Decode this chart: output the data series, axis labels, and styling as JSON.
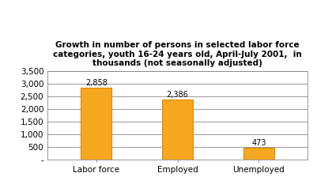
{
  "title": "Growth in number of persons in selected labor force\ncategories, youth 16-24 years old, April-July 2001,  in\nthousands (not seasonally adjusted)",
  "categories": [
    "Labor force",
    "Employed",
    "Unemployed"
  ],
  "values": [
    2858,
    2386,
    473
  ],
  "bar_color": "#F5A820",
  "bar_edge_color": "#E08800",
  "ylim": [
    0,
    3500
  ],
  "yticks": [
    0,
    500,
    1000,
    1500,
    2000,
    2500,
    3000,
    3500
  ],
  "ytick_labels": [
    "-",
    "500",
    "1,000",
    "1,500",
    "2,000",
    "2,500",
    "3,000",
    "3,500"
  ],
  "value_labels": [
    "2,858",
    "2,386",
    "473"
  ],
  "background_color": "#ffffff",
  "plot_bg_color": "#ffffff",
  "title_fontsize": 7.5,
  "label_fontsize": 7,
  "tick_fontsize": 7.5
}
